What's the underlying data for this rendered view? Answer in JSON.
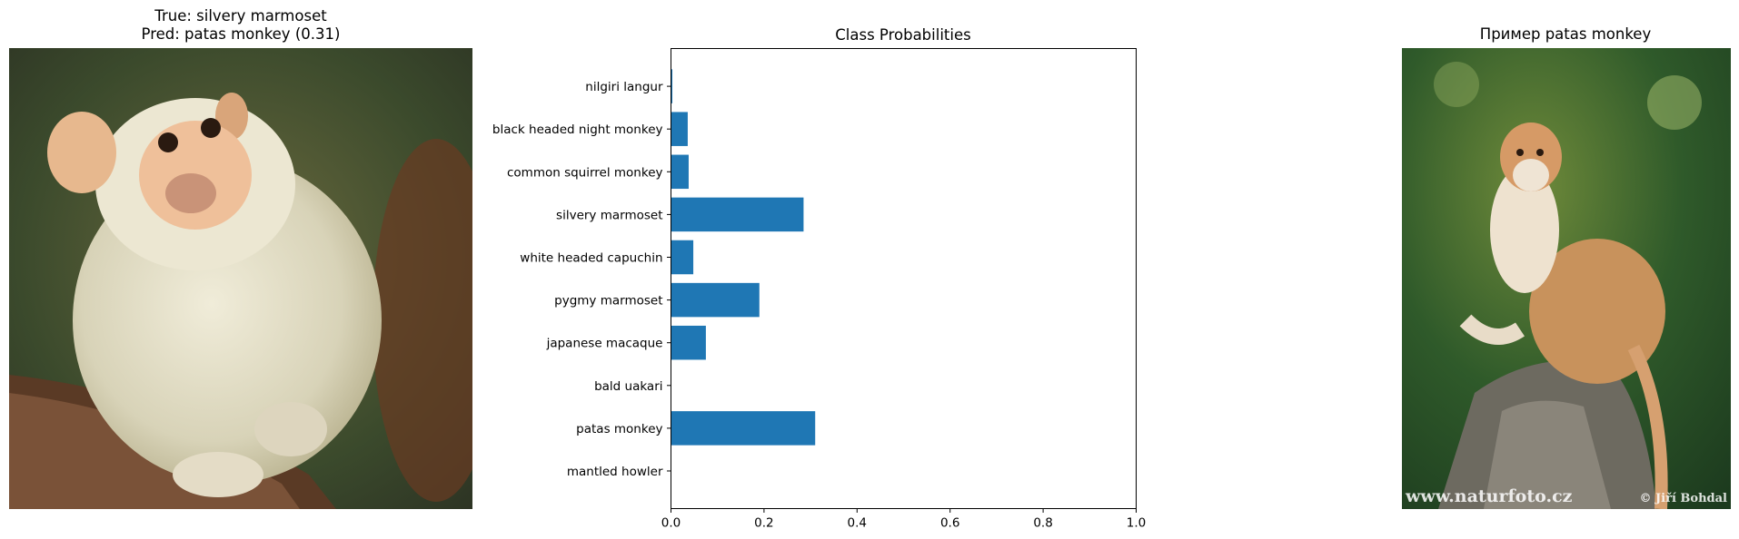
{
  "left_panel": {
    "title_line1": "True: silvery marmoset",
    "title_line2": "Pred: patas monkey (0.31)"
  },
  "right_panel": {
    "title": "Пример patas monkey",
    "watermark_left": "www.naturfoto.cz",
    "watermark_right": "© Jiří Bohdal"
  },
  "chart_data": {
    "type": "bar",
    "orientation": "horizontal",
    "title": "Class Probabilities",
    "xlabel": "",
    "ylabel": "",
    "xlim": [
      0,
      1
    ],
    "xticks": [
      "0.0",
      "0.2",
      "0.4",
      "0.6",
      "0.8",
      "1.0"
    ],
    "categories": [
      "mantled howler",
      "patas monkey",
      "bald uakari",
      "japanese macaque",
      "pygmy marmoset",
      "white headed capuchin",
      "silvery marmoset",
      "common squirrel monkey",
      "black headed night monkey",
      "nilgiri langur"
    ],
    "values": [
      0.0,
      0.31,
      0.0,
      0.075,
      0.19,
      0.048,
      0.285,
      0.038,
      0.036,
      0.003
    ],
    "bar_color": "#1f77b4",
    "grid": false
  }
}
